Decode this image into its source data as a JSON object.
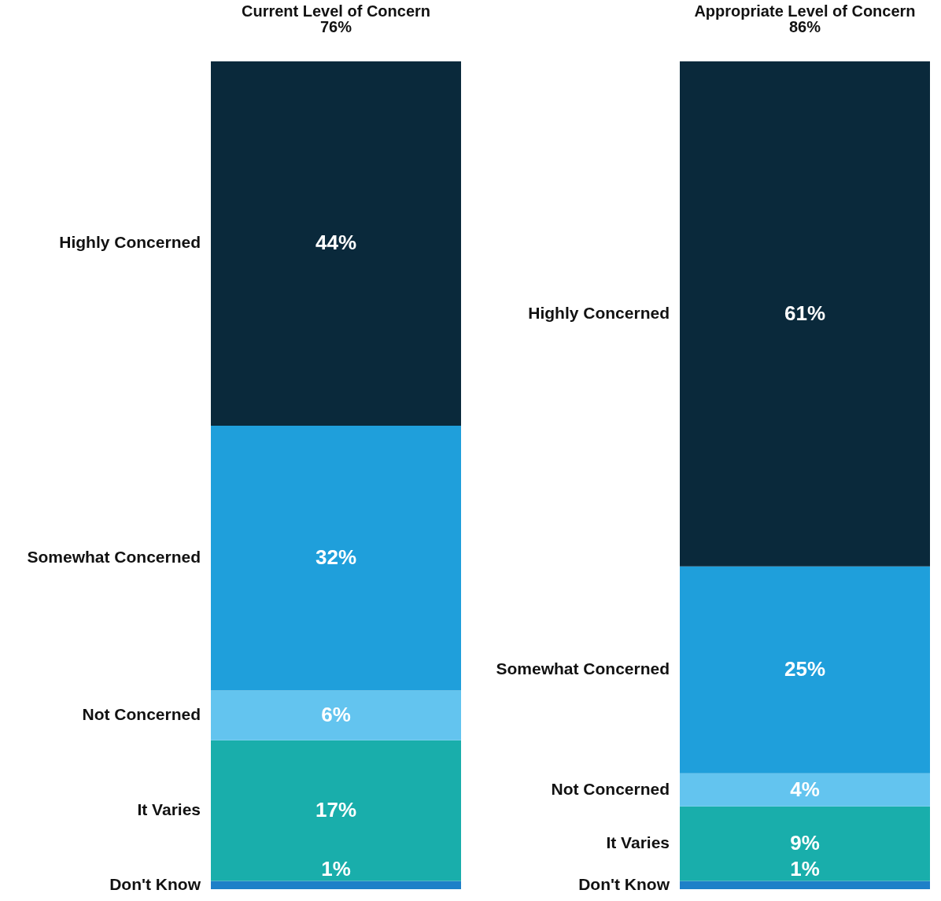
{
  "chart_data": [
    {
      "type": "bar",
      "title": "Current Level of Concern",
      "subtitle": "76%",
      "categories": [
        null
      ],
      "stacked": true,
      "series": [
        {
          "name": "Don't Know",
          "color": "#1e80c8",
          "values": [
            1
          ],
          "value_labels": [
            "1%"
          ]
        },
        {
          "name": "It Varies",
          "color": "#19aeab",
          "values": [
            17
          ],
          "value_labels": [
            "17%"
          ]
        },
        {
          "name": "Not Concerned",
          "color": "#63c4ef",
          "values": [
            6
          ],
          "value_labels": [
            "6%"
          ]
        },
        {
          "name": "Somewhat Concerned",
          "color": "#1f9fdb",
          "values": [
            32
          ],
          "value_labels": [
            "32%"
          ]
        },
        {
          "name": "Highly Concerned",
          "color": "#0a293b",
          "values": [
            44
          ],
          "value_labels": [
            "44%"
          ]
        }
      ]
    },
    {
      "type": "bar",
      "title": "Appropriate Level of Concern",
      "subtitle": "86%",
      "categories": [
        null
      ],
      "stacked": true,
      "series": [
        {
          "name": "Don't Know",
          "color": "#1e80c8",
          "values": [
            1
          ],
          "value_labels": [
            "1%"
          ]
        },
        {
          "name": "It Varies",
          "color": "#19aeab",
          "values": [
            9
          ],
          "value_labels": [
            "9%"
          ]
        },
        {
          "name": "Not Concerned",
          "color": "#63c4ef",
          "values": [
            4
          ],
          "value_labels": [
            "4%"
          ]
        },
        {
          "name": "Somewhat Concerned",
          "color": "#1f9fdb",
          "values": [
            25
          ],
          "value_labels": [
            "25%"
          ]
        },
        {
          "name": "Highly Concerned",
          "color": "#0a293b",
          "values": [
            61
          ],
          "value_labels": [
            "61%"
          ]
        }
      ]
    }
  ]
}
